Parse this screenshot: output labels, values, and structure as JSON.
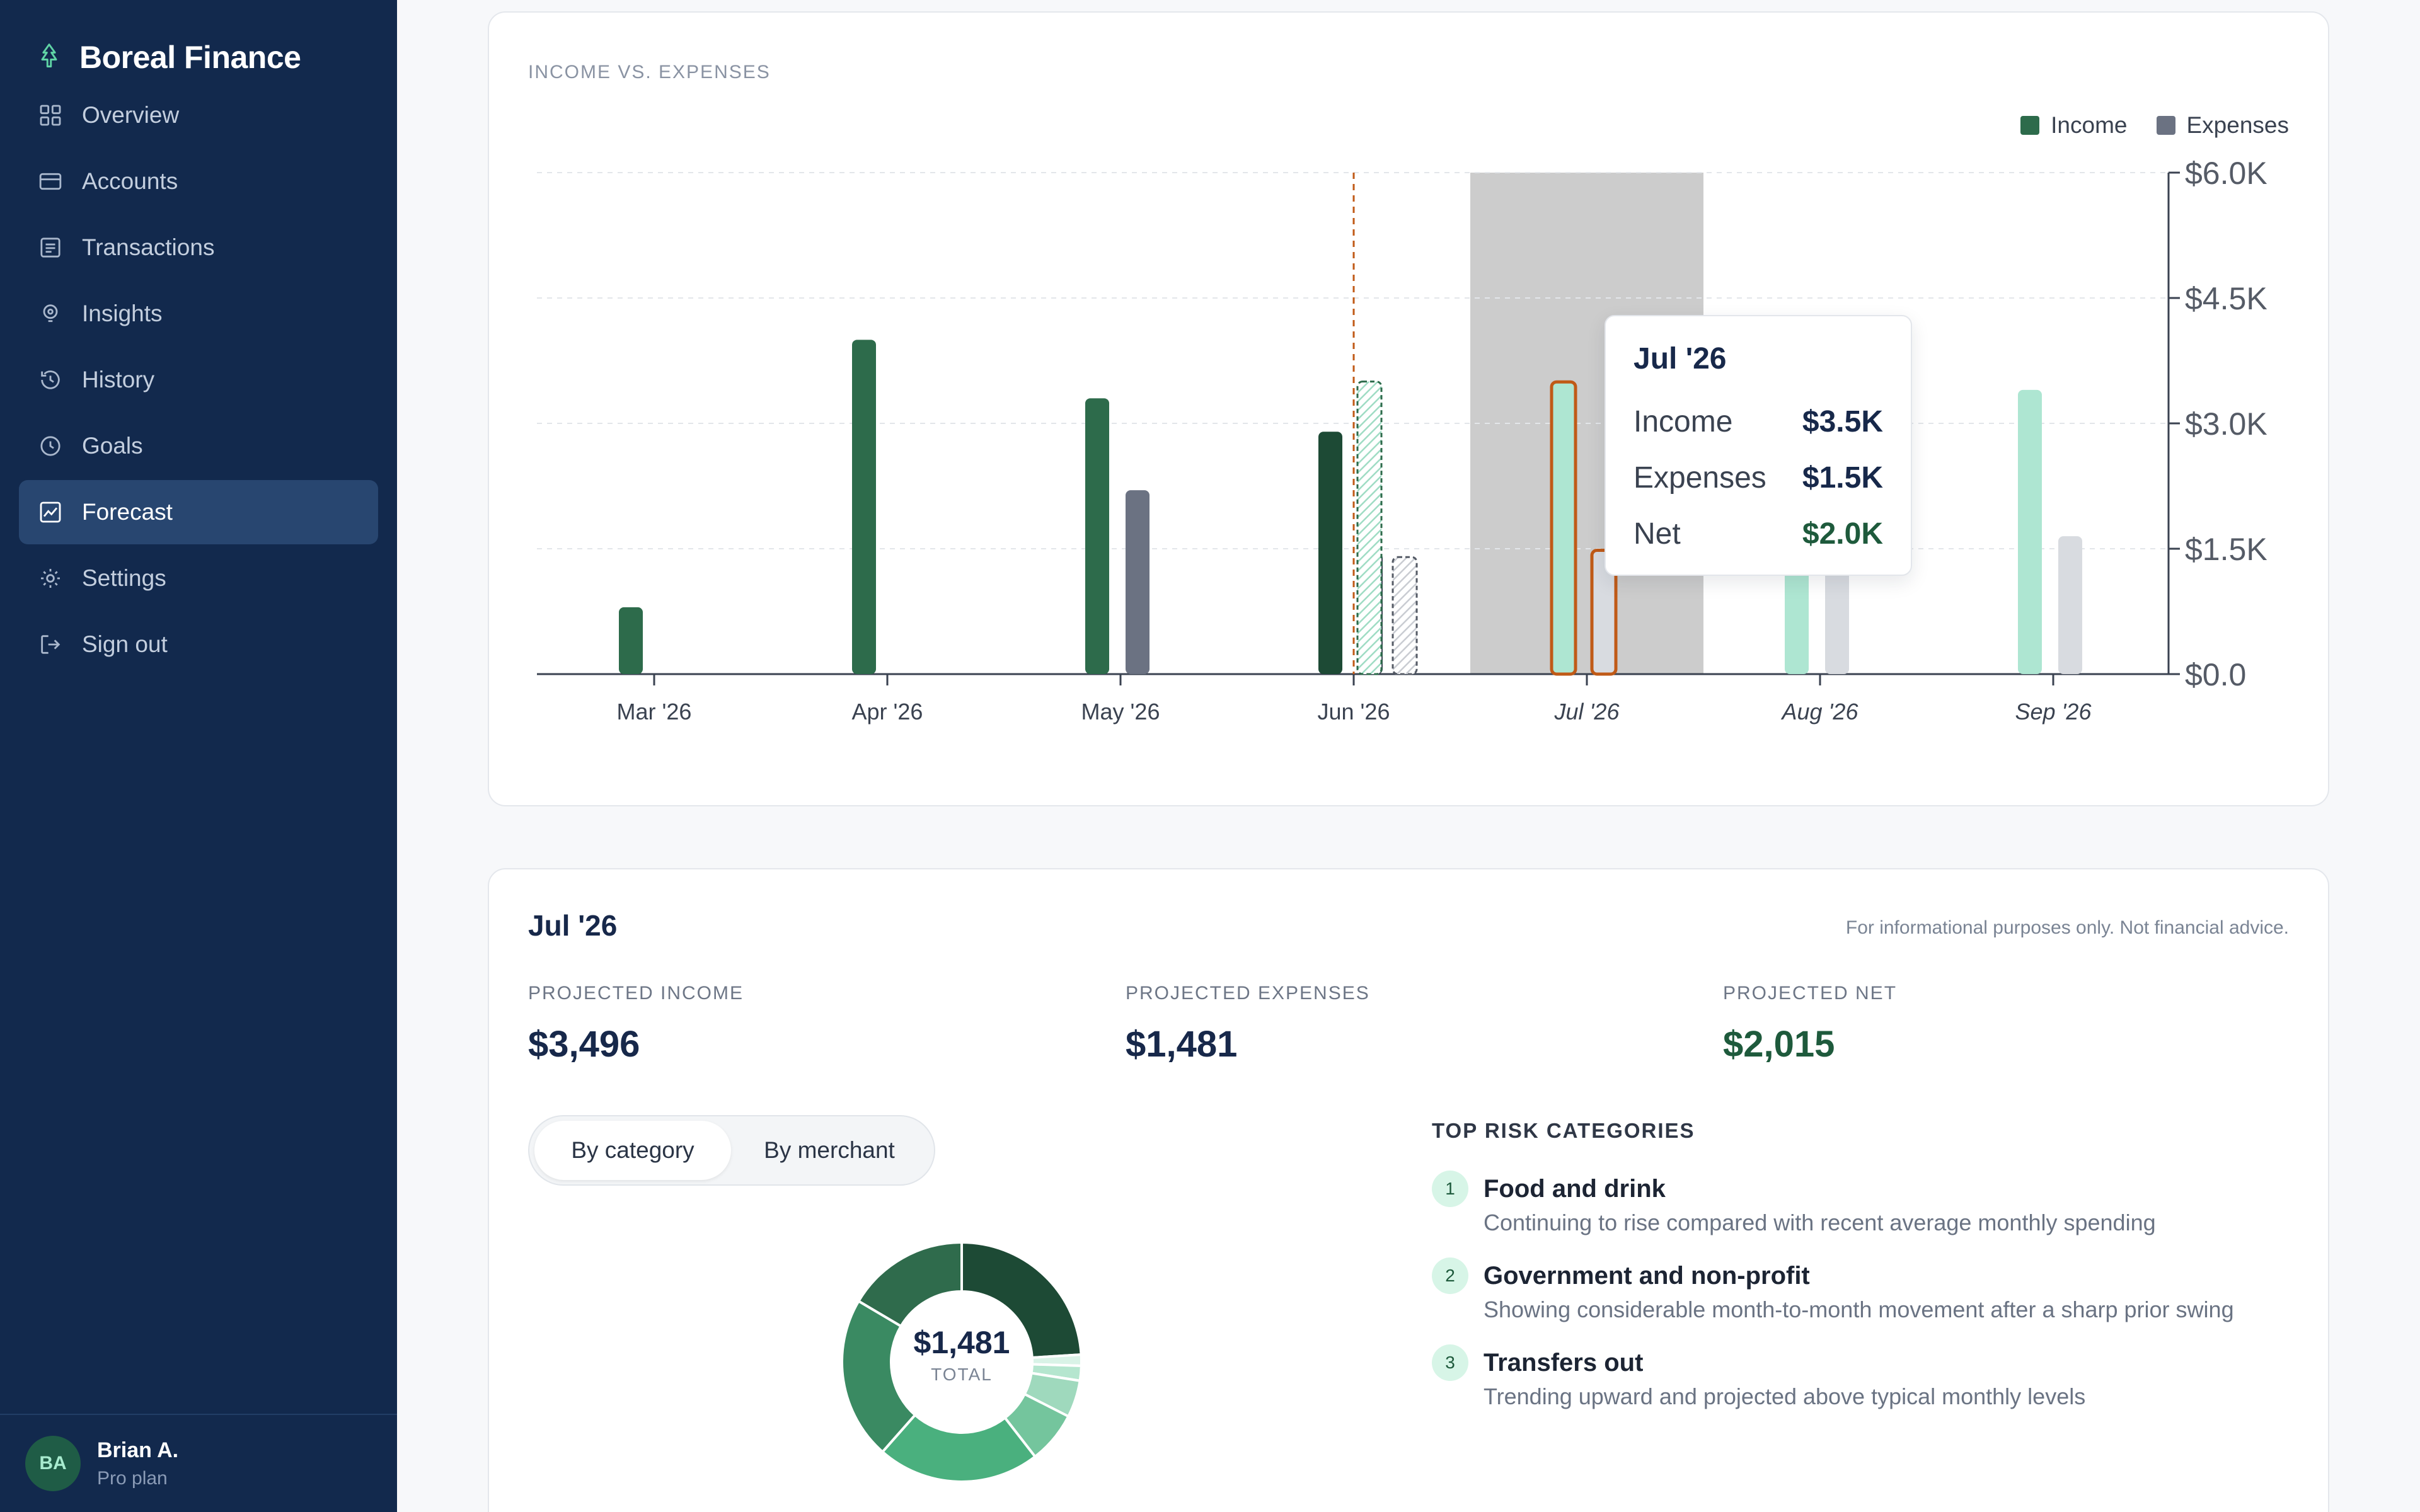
{
  "brand": {
    "name": "Boreal Finance",
    "icon": "tree-icon"
  },
  "sidebar": {
    "items": [
      {
        "label": "Overview",
        "icon": "grid-icon"
      },
      {
        "label": "Accounts",
        "icon": "card-icon"
      },
      {
        "label": "Transactions",
        "icon": "list-icon"
      },
      {
        "label": "Insights",
        "icon": "lightbulb-icon"
      },
      {
        "label": "History",
        "icon": "history-icon"
      },
      {
        "label": "Goals",
        "icon": "clock-icon"
      },
      {
        "label": "Forecast",
        "icon": "chart-line-icon",
        "active": true
      },
      {
        "label": "Settings",
        "icon": "gear-icon"
      },
      {
        "label": "Sign out",
        "icon": "sign-out-icon"
      }
    ],
    "user": {
      "initials": "BA",
      "name": "Brian A.",
      "plan": "Pro plan"
    }
  },
  "chart_card": {
    "eyebrow": "INCOME VS. EXPENSES",
    "legend": [
      {
        "label": "Income",
        "color": "#2d6b4b"
      },
      {
        "label": "Expenses",
        "color": "#6b7282"
      }
    ]
  },
  "chart_data": {
    "type": "bar",
    "categories": [
      "Mar '26",
      "Apr '26",
      "May '26",
      "Jun '26",
      "Jul '26",
      "Aug '26",
      "Sep '26"
    ],
    "forecast_start_index": 4,
    "y_ticks": [
      "$0.0",
      "$1.5K",
      "$3.0K",
      "$4.5K",
      "$6.0K"
    ],
    "ylim": [
      0,
      6000
    ],
    "grid": true,
    "legend_position": "top-right",
    "series": [
      {
        "name": "Income",
        "values": [
          800,
          4000,
          3300,
          2900,
          3496,
          1600,
          3400
        ],
        "color": "#2d6b4b",
        "forecast_color": "#aee6d2"
      },
      {
        "name": "Expenses",
        "values": [
          0,
          0,
          2200,
          1450,
          1481,
          1500,
          1650
        ],
        "color": "#6b7282",
        "forecast_color": "#d8dbe0"
      }
    ],
    "partial_month": {
      "category": "Jun '26",
      "income": 3500,
      "expenses": 1400
    },
    "highlighted": "Jul '26"
  },
  "tooltip": {
    "title": "Jul '26",
    "rows": [
      {
        "label": "Income",
        "value": "$3.5K"
      },
      {
        "label": "Expenses",
        "value": "$1.5K"
      },
      {
        "label": "Net",
        "value": "$2.0K"
      }
    ]
  },
  "detail": {
    "title": "Jul '26",
    "disclaimer": "For informational purposes only. Not financial advice.",
    "metrics": [
      {
        "label": "PROJECTED INCOME",
        "value": "$3,496"
      },
      {
        "label": "PROJECTED EXPENSES",
        "value": "$1,481"
      },
      {
        "label": "PROJECTED NET",
        "value": "$2,015"
      }
    ],
    "toggle": {
      "options": [
        "By category",
        "By merchant"
      ],
      "selected": "By category"
    },
    "donut": {
      "total": "$1,481",
      "total_label": "TOTAL",
      "segments": [
        {
          "value": 24,
          "color": "#1d4a35"
        },
        {
          "value": 1.5,
          "color": "#d9f3e7"
        },
        {
          "value": 2,
          "color": "#b5e6cf"
        },
        {
          "value": 5,
          "color": "#9fd9bd"
        },
        {
          "value": 7,
          "color": "#74c59d"
        },
        {
          "value": 22,
          "color": "#4ab07e"
        },
        {
          "value": 22,
          "color": "#3a8a62"
        },
        {
          "value": 16.5,
          "color": "#2f6b4c"
        }
      ]
    },
    "risk": {
      "heading": "TOP RISK CATEGORIES",
      "items": [
        {
          "num": "1",
          "title": "Food and drink",
          "desc": "Continuing to rise compared with recent average monthly spending"
        },
        {
          "num": "2",
          "title": "Government and non-profit",
          "desc": "Showing considerable month-to-month movement after a sharp prior swing"
        },
        {
          "num": "3",
          "title": "Transfers out",
          "desc": "Trending upward and projected above typical monthly levels"
        }
      ]
    }
  }
}
